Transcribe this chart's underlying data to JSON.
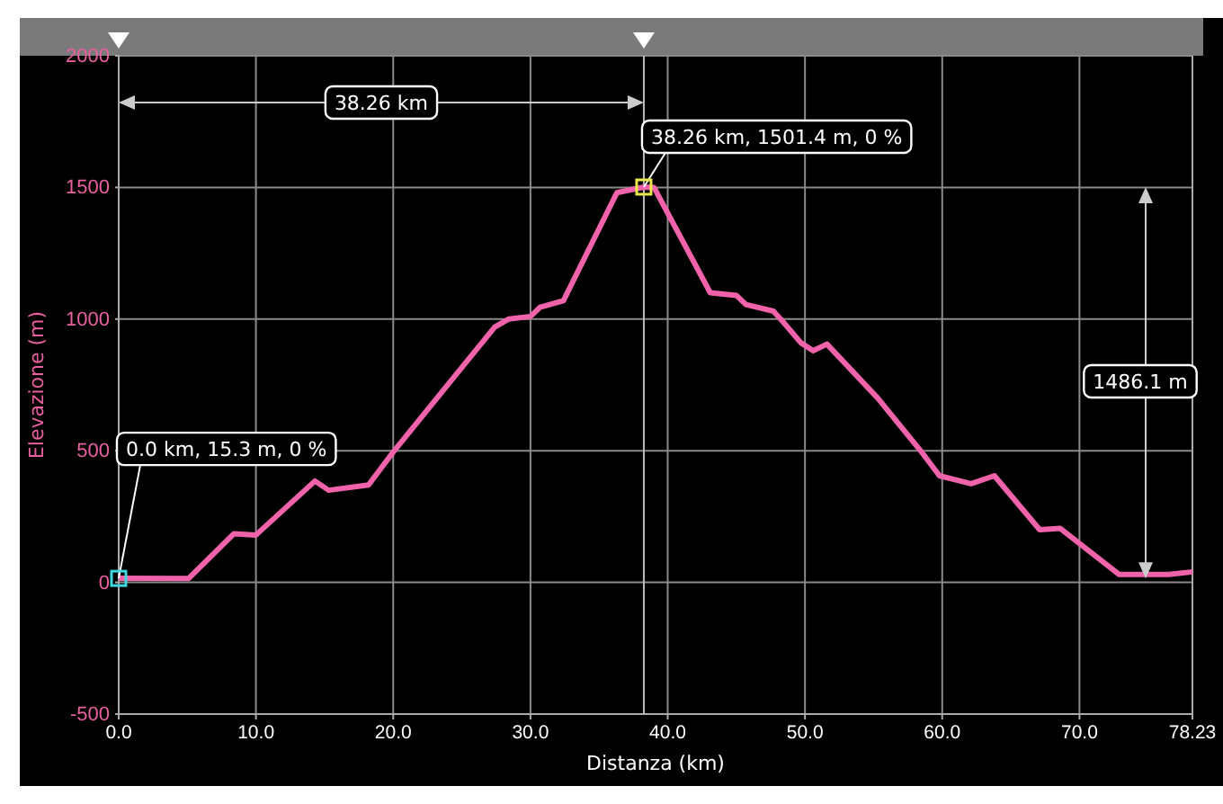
{
  "chart_data": {
    "type": "line",
    "xlabel": "Distanza (km)",
    "ylabel": "Elevazione (m)",
    "xlim": [
      0,
      78.23
    ],
    "ylim": [
      -500,
      2000
    ],
    "xticks": [
      {
        "value": 0,
        "label": "0.0"
      },
      {
        "value": 10,
        "label": "10.0"
      },
      {
        "value": 20,
        "label": "20.0"
      },
      {
        "value": 30,
        "label": "30.0"
      },
      {
        "value": 40,
        "label": "40.0"
      },
      {
        "value": 50,
        "label": "50.0"
      },
      {
        "value": 60,
        "label": "60.0"
      },
      {
        "value": 70,
        "label": "70.0"
      },
      78.23
    ],
    "yticks": [
      -500,
      0,
      500,
      1000,
      1500,
      2000
    ],
    "grid": true,
    "line_style": "solid",
    "ref_lines": [
      {
        "axis": "x",
        "value": 38.26,
        "color": "#bbbbbb"
      }
    ],
    "series": [
      {
        "color": "#f062aa",
        "x": [
          0,
          5.1,
          8.4,
          10,
          14.3,
          15.3,
          18.2,
          20,
          27.4,
          28.4,
          30,
          30.7,
          32.4,
          36.3,
          38.26,
          39,
          43.1,
          45,
          45.7,
          47.7,
          48.4,
          49.7,
          50.6,
          51.6,
          55.3,
          58.5,
          59.8,
          62.1,
          63.8,
          67.1,
          68.6,
          72.9,
          76.5,
          78.23
        ],
        "values": [
          15.3,
          15,
          185,
          180,
          385,
          350,
          370,
          495,
          970,
          1000,
          1010,
          1045,
          1070,
          1480,
          1501.4,
          1500,
          1100,
          1090,
          1055,
          1030,
          990,
          910,
          880,
          905,
          700,
          495,
          405,
          375,
          405,
          200,
          205,
          30,
          30,
          40
        ]
      }
    ],
    "annotations": [
      "38.26 km",
      {
        "text": "38.26 km, 1501.4 m, 0 %",
        "x": 38.26,
        "y": 1501.4
      },
      {
        "text": "0.0 km, 15.3 m, 0 %",
        "x": 0,
        "y": 15.3
      },
      "1486.1 m"
    ]
  }
}
